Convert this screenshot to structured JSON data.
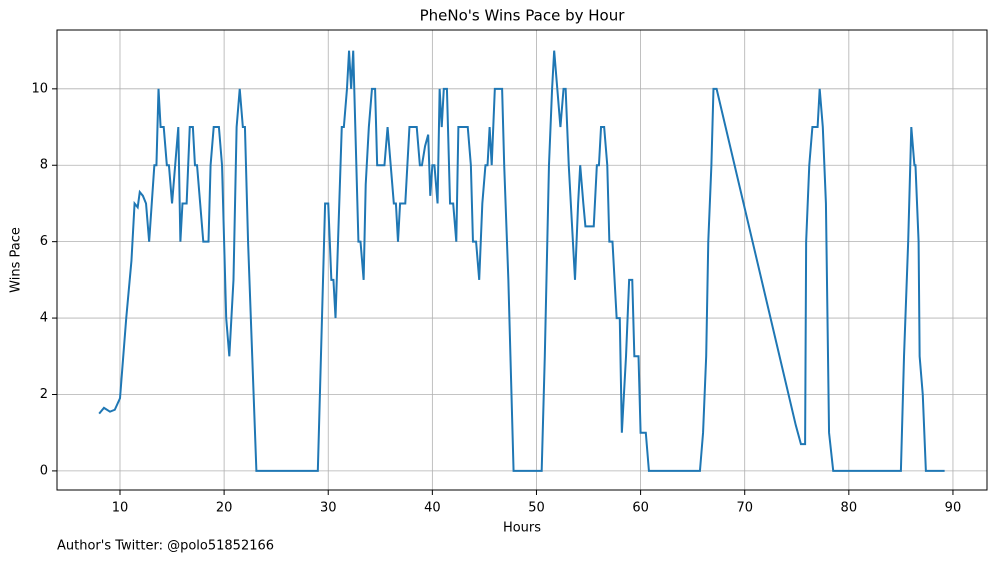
{
  "chart_data": {
    "type": "line",
    "title": "PheNo's Wins Pace by Hour",
    "xlabel": "Hours",
    "ylabel": "Wins Pace",
    "footnote": "Author's Twitter: @polo51852166",
    "x": [
      8.0,
      8.46,
      9.04,
      9.5,
      10.0,
      10.6,
      11.1,
      11.4,
      11.7,
      11.9,
      12.2,
      12.5,
      12.8,
      13.1,
      13.3,
      13.5,
      13.7,
      13.9,
      14.2,
      14.5,
      14.7,
      15.0,
      15.3,
      15.6,
      15.8,
      16.0,
      16.4,
      16.7,
      17.0,
      17.2,
      17.4,
      17.7,
      18.0,
      18.5,
      18.7,
      19.0,
      19.5,
      19.8,
      20.2,
      20.5,
      20.9,
      21.2,
      21.5,
      21.8,
      22.0,
      22.3,
      22.7,
      23.1,
      29.0,
      29.4,
      29.7,
      30.0,
      30.3,
      30.5,
      30.7,
      31.0,
      31.3,
      31.5,
      31.8,
      32.0,
      32.2,
      32.4,
      32.6,
      32.9,
      33.1,
      33.4,
      33.6,
      33.9,
      34.2,
      34.5,
      34.7,
      35.4,
      35.7,
      36.0,
      36.3,
      36.5,
      36.7,
      36.9,
      37.4,
      37.8,
      38.5,
      38.8,
      39.0,
      39.3,
      39.6,
      39.8,
      40.0,
      40.2,
      40.5,
      40.7,
      40.9,
      41.1,
      41.4,
      41.7,
      42.0,
      42.3,
      42.5,
      43.4,
      43.7,
      43.9,
      44.2,
      44.5,
      44.8,
      45.1,
      45.3,
      45.5,
      45.7,
      46.0,
      46.7,
      46.9,
      47.3,
      47.6,
      47.8,
      50.5,
      50.8,
      51.2,
      51.5,
      51.7,
      52.0,
      52.3,
      52.6,
      52.8,
      53.1,
      53.4,
      53.7,
      54.0,
      54.2,
      54.5,
      54.7,
      55.5,
      55.8,
      56.0,
      56.2,
      56.5,
      56.8,
      57.0,
      57.3,
      57.7,
      58.0,
      58.2,
      58.6,
      58.9,
      59.2,
      59.4,
      59.8,
      60.0,
      60.5,
      60.8,
      65.7,
      66.0,
      66.3,
      66.5,
      66.8,
      67.0,
      67.3,
      74.9,
      75.4,
      75.8,
      75.9,
      76.2,
      76.5,
      77.0,
      77.2,
      77.5,
      77.8,
      78.1,
      78.5,
      85.0,
      85.3,
      85.7,
      86.0,
      86.3,
      86.4,
      86.7,
      86.8,
      87.1,
      87.4,
      89.2
    ],
    "series": [
      {
        "name": "Wins Pace",
        "color": "#1f77b4",
        "values": [
          1.5,
          1.65,
          1.55,
          1.6,
          1.9,
          4,
          5.5,
          7,
          6.9,
          7.3,
          7.2,
          7,
          6,
          7.2,
          8,
          8,
          10,
          9,
          9,
          8,
          8,
          7,
          8,
          9,
          6,
          7,
          7,
          9,
          9,
          8,
          8,
          7,
          6,
          6,
          8,
          9,
          9,
          8,
          4,
          3,
          5,
          9,
          10,
          9,
          9,
          6,
          3,
          0,
          0,
          4,
          7,
          7,
          5,
          5,
          4,
          6.5,
          9,
          9,
          10,
          11,
          10,
          11,
          9,
          6,
          6,
          5,
          7.5,
          9,
          10,
          10,
          8,
          8,
          9,
          8,
          7,
          7,
          6,
          7,
          7,
          9,
          9,
          8,
          8,
          8.5,
          8.8,
          7.2,
          8,
          8,
          7,
          10,
          9,
          10,
          10,
          7,
          7,
          6,
          9,
          9,
          8,
          6,
          6,
          5,
          7,
          8,
          8,
          9,
          8,
          10,
          10,
          8,
          5,
          2,
          0,
          0,
          3,
          8,
          10,
          11,
          10,
          9,
          10,
          10,
          8,
          6.5,
          5,
          7,
          8,
          7,
          6.4,
          6.4,
          8,
          8,
          9,
          9,
          8,
          6,
          6,
          4,
          4,
          1,
          3,
          5,
          5,
          3,
          3,
          1,
          1,
          0,
          0,
          1,
          3,
          6,
          8,
          10,
          10,
          1.2,
          0.7,
          0.7,
          6,
          8,
          9,
          9,
          10,
          9,
          7,
          1,
          0,
          0,
          3,
          6,
          9,
          8,
          8,
          6,
          3,
          2,
          0,
          0
        ]
      }
    ],
    "xlim": [
      3.95,
      93.27
    ],
    "ylim": [
      -0.5,
      11.54
    ],
    "xticks": [
      10,
      20,
      30,
      40,
      50,
      60,
      70,
      80,
      90
    ],
    "yticks": [
      0,
      2,
      4,
      6,
      8,
      10
    ],
    "grid": true
  }
}
